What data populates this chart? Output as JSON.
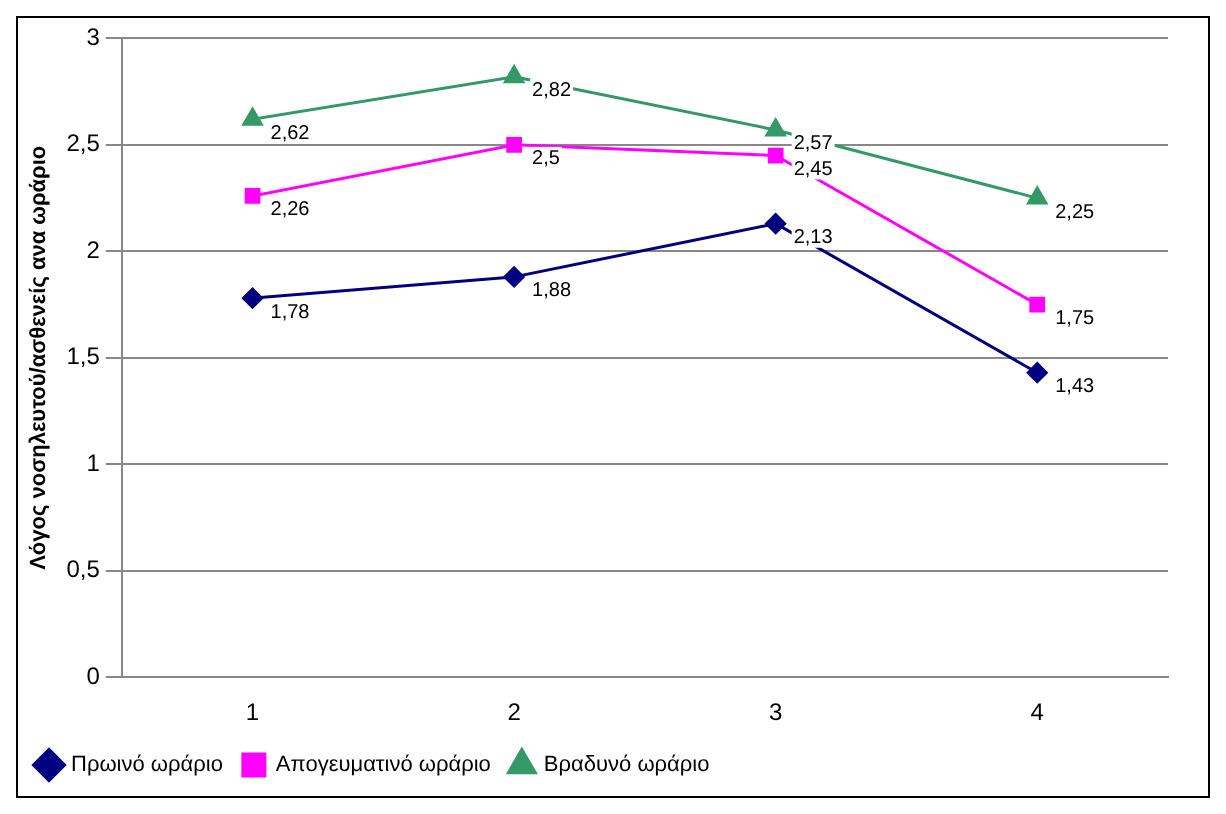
{
  "chart_data": {
    "type": "line",
    "ylabel": "Λόγος νοσηλευτού/ασθενείς ανα ωράριο",
    "categories": [
      "1",
      "2",
      "3",
      "4"
    ],
    "series": [
      {
        "name": "Πρωινό ωράριο",
        "color": "#000080",
        "marker": "diamond",
        "values": [
          1.78,
          1.88,
          2.13,
          1.43
        ],
        "value_labels": [
          "1,78",
          "1,88",
          "2,13",
          "1,43"
        ]
      },
      {
        "name": "Απογευματινό ωράριο",
        "color": "#ff00ff",
        "marker": "square",
        "values": [
          2.26,
          2.5,
          2.45,
          1.75
        ],
        "value_labels": [
          "2,26",
          "2,5",
          "2,45",
          "1,75"
        ]
      },
      {
        "name": "Βραδυνό ωράριο",
        "color": "#339966",
        "marker": "triangle",
        "values": [
          2.62,
          2.82,
          2.57,
          2.25
        ],
        "value_labels": [
          "2,62",
          "2,82",
          "2,57",
          "2,25"
        ]
      }
    ],
    "ylim": [
      0,
      3
    ],
    "yticks": [
      0,
      {
        "value": 0.5,
        "label": "0,5"
      },
      1,
      {
        "value": 1.5,
        "label": "1,5"
      },
      2,
      {
        "value": 2.5,
        "label": "2,5"
      },
      3
    ],
    "grid": "y",
    "legend": "bottom left"
  }
}
